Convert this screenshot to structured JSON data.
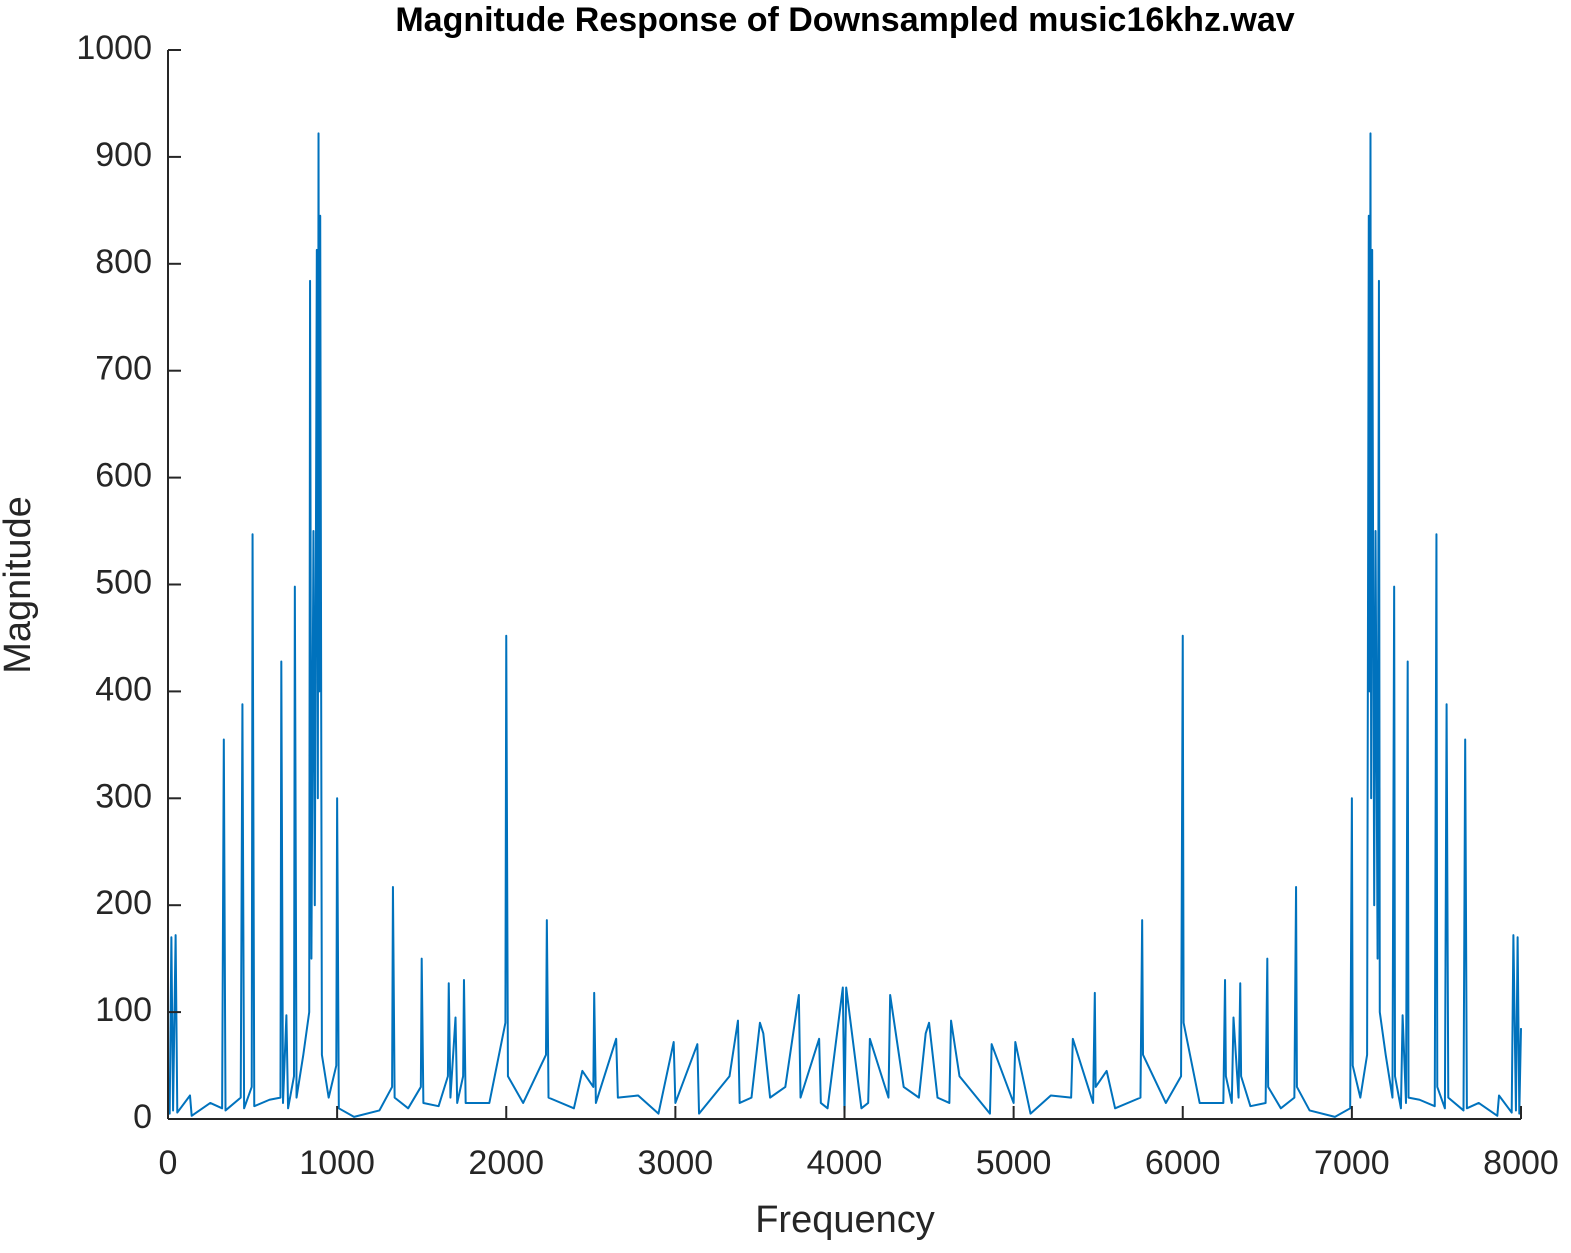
{
  "chart_data": {
    "type": "line",
    "title": "Magnitude Response of Downsampled music16khz.wav",
    "xlabel": "Frequency",
    "ylabel": "Magnitude",
    "color": "#0072bd",
    "x": [
      0,
      10,
      20,
      30,
      45,
      55,
      130,
      140,
      250,
      320,
      330,
      340,
      430,
      440,
      450,
      495,
      500,
      510,
      600,
      665,
      670,
      680,
      700,
      710,
      745,
      750,
      760,
      800,
      835,
      840,
      848,
      860,
      868,
      880,
      886,
      890,
      895,
      900,
      910,
      950,
      995,
      1000,
      1010,
      1100,
      1250,
      1325,
      1330,
      1340,
      1420,
      1495,
      1500,
      1510,
      1600,
      1655,
      1660,
      1670,
      1700,
      1710,
      1745,
      1750,
      1760,
      1900,
      1995,
      2000,
      2010,
      2100,
      2235,
      2240,
      2250,
      2400,
      2450,
      2515,
      2520,
      2530,
      2650,
      2660,
      2780,
      2900,
      2990,
      3000,
      3130,
      3140,
      3320,
      3370,
      3380,
      3450,
      3500,
      3520,
      3560,
      3650,
      3730,
      3740,
      3850,
      3860,
      3900,
      3990,
      4000,
      4010,
      4100,
      4140,
      4150,
      4260,
      4270,
      4350,
      4440,
      4480,
      4500,
      4550,
      4620,
      4630,
      4680,
      4860,
      4870,
      5000,
      5010,
      5100,
      5220,
      5340,
      5350,
      5470,
      5480,
      5485,
      5550,
      5600,
      5750,
      5760,
      5765,
      5900,
      5990,
      6000,
      6005,
      6100,
      6240,
      6250,
      6255,
      6290,
      6300,
      6330,
      6340,
      6345,
      6400,
      6490,
      6500,
      6505,
      6580,
      6660,
      6670,
      6675,
      6750,
      6900,
      6990,
      7000,
      7005,
      7050,
      7090,
      7100,
      7105,
      7110,
      7114,
      7120,
      7132,
      7140,
      7152,
      7160,
      7165,
      7200,
      7240,
      7250,
      7255,
      7290,
      7300,
      7320,
      7330,
      7335,
      7400,
      7490,
      7500,
      7505,
      7550,
      7560,
      7570,
      7660,
      7670,
      7680,
      7750,
      7860,
      7870,
      7945,
      7955,
      7970,
      7980,
      7990,
      8000
    ],
    "values": [
      30,
      5,
      170,
      8,
      172,
      6,
      22,
      3,
      15,
      10,
      355,
      8,
      20,
      388,
      10,
      30,
      547,
      12,
      18,
      20,
      428,
      15,
      97,
      10,
      40,
      498,
      20,
      60,
      100,
      784,
      150,
      550,
      200,
      813,
      300,
      922,
      400,
      845,
      60,
      20,
      50,
      300,
      10,
      2,
      8,
      30,
      217,
      20,
      10,
      30,
      150,
      15,
      12,
      40,
      127,
      20,
      95,
      15,
      40,
      130,
      15,
      15,
      90,
      452,
      40,
      15,
      60,
      186,
      20,
      10,
      45,
      30,
      118,
      15,
      75,
      20,
      22,
      5,
      72,
      15,
      70,
      5,
      40,
      92,
      15,
      20,
      90,
      80,
      20,
      30,
      116,
      20,
      75,
      15,
      10,
      123,
      5,
      123,
      10,
      15,
      75,
      20,
      116,
      30,
      20,
      80,
      90,
      20,
      15,
      92,
      40,
      5,
      70,
      15,
      72,
      5,
      22,
      20,
      75,
      15,
      118,
      30,
      45,
      10,
      20,
      186,
      60,
      15,
      40,
      452,
      90,
      15,
      15,
      130,
      40,
      15,
      95,
      20,
      127,
      40,
      12,
      15,
      150,
      30,
      10,
      20,
      217,
      30,
      8,
      2,
      10,
      300,
      50,
      20,
      60,
      845,
      400,
      922,
      300,
      813,
      200,
      550,
      150,
      784,
      100,
      60,
      20,
      498,
      40,
      10,
      97,
      15,
      428,
      20,
      18,
      12,
      547,
      30,
      10,
      388,
      20,
      8,
      355,
      10,
      15,
      3,
      22,
      6,
      172,
      8,
      170,
      5,
      85
    ],
    "xlim": [
      0,
      8000
    ],
    "xticks": [
      0,
      1000,
      2000,
      3000,
      4000,
      5000,
      6000,
      7000,
      8000
    ],
    "ylim": [
      0,
      1000
    ],
    "yticks": [
      0,
      100,
      200,
      300,
      400,
      500,
      600,
      700,
      800,
      900,
      1000
    ]
  }
}
